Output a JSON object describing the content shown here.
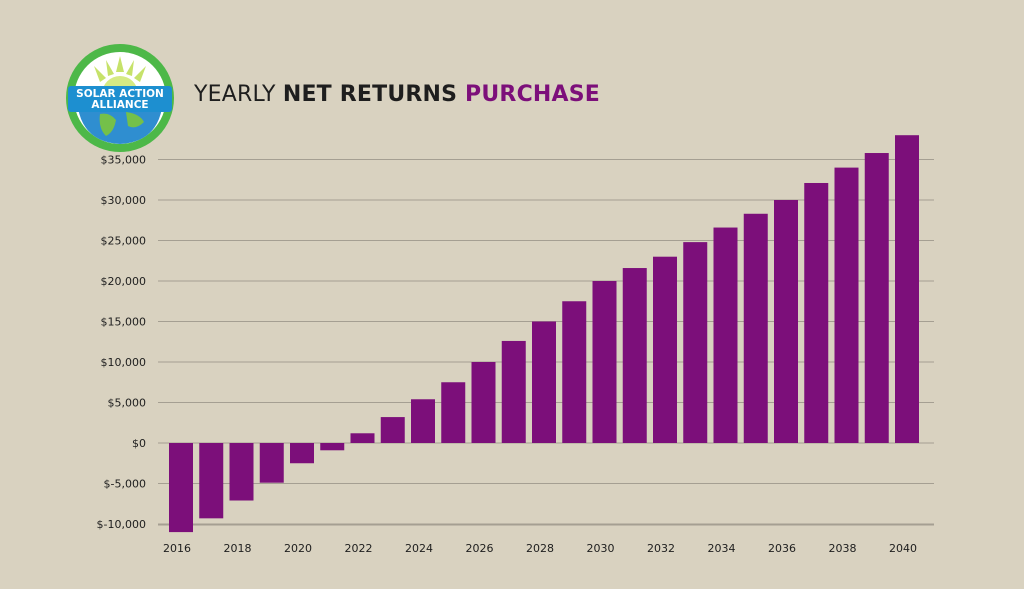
{
  "colors": {
    "background": "#d9d2c0",
    "bar": "#7c0f7a",
    "grid": "#a59f92",
    "title_accent": "#7c0f7a",
    "logo_ring": "#4db848",
    "logo_banner": "#1d8fd0",
    "logo_globe": "#2f8ed0",
    "logo_sun": "#c6e26a"
  },
  "logo": {
    "line1": "SOLAR ACTION",
    "line2": "ALLIANCE"
  },
  "title": {
    "part1": "YEARLY ",
    "part2": "NET RETURNS",
    "part3": " PURCHASE"
  },
  "chart_data": {
    "type": "bar",
    "categories": [
      "2016",
      "2017",
      "2018",
      "2019",
      "2020",
      "2021",
      "2022",
      "2023",
      "2024",
      "2025",
      "2026",
      "2027",
      "2028",
      "2029",
      "2030",
      "2031",
      "2032",
      "2033",
      "2034",
      "2035",
      "2036",
      "2037",
      "2038",
      "2039",
      "2040"
    ],
    "values": [
      -11000,
      -9300,
      -7100,
      -4900,
      -2500,
      -900,
      1200,
      3200,
      5400,
      7500,
      10000,
      12600,
      15000,
      17500,
      20000,
      21600,
      23000,
      24800,
      26600,
      28300,
      30000,
      32100,
      34000,
      35800,
      38000
    ],
    "x_tick_labels": [
      "2016",
      "2018",
      "2020",
      "2022",
      "2024",
      "2026",
      "2028",
      "2030",
      "2032",
      "2034",
      "2036",
      "2038",
      "2040"
    ],
    "y_ticks": [
      -10000,
      -5000,
      0,
      5000,
      10000,
      15000,
      20000,
      25000,
      30000,
      35000
    ],
    "y_tick_labels": [
      "$-10,000",
      "$-5,000",
      "$0",
      "$5,000",
      "$10,000",
      "$15,000",
      "$20,000",
      "$25,000",
      "$30,000",
      "$35,000"
    ],
    "ylim": [
      -11000,
      38000
    ],
    "grid": true,
    "legend": "none"
  }
}
